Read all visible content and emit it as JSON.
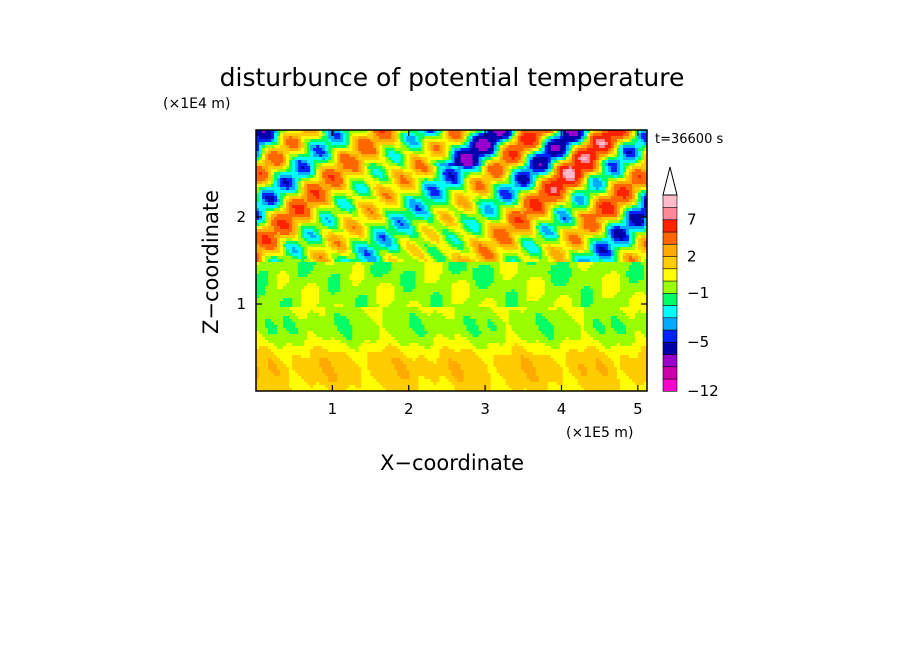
{
  "chart_data": {
    "type": "heatmap",
    "title": "disturbunce of potential temperature",
    "xlabel": "X−coordinate",
    "ylabel": "Z−coordinate",
    "x_unit": "(×1E5 m)",
    "y_unit": "(×1E4 m)",
    "time_label": "t=36600 s",
    "xlim": [
      0,
      5.12
    ],
    "ylim": [
      0,
      3.0
    ],
    "x_ticks": [
      1,
      2,
      3,
      4,
      5
    ],
    "x_tick_labels": [
      "1",
      "2",
      "3",
      "4",
      "5"
    ],
    "y_ticks": [
      1,
      2
    ],
    "y_tick_labels": [
      "1",
      "2"
    ],
    "grid": false,
    "colorbar": {
      "levels": [
        -12,
        -11,
        -9,
        -7,
        -5,
        -4,
        -3,
        -2,
        -1,
        0,
        1,
        2,
        3,
        5,
        7,
        8,
        9,
        10
      ],
      "colors": [
        "#ff00cc",
        "#cc00aa",
        "#9900cc",
        "#0000aa",
        "#0022ff",
        "#00aaff",
        "#00ffff",
        "#00ff66",
        "#99ff00",
        "#ffff00",
        "#ffcc00",
        "#ffaa00",
        "#ff6600",
        "#ff2200",
        "#ff8899",
        "#ffbbcc"
      ],
      "tick_values": [
        -12,
        -5,
        -1,
        2,
        7
      ],
      "tick_labels": [
        "−12",
        "−5",
        "−1",
        "2",
        "7"
      ],
      "extend": "max"
    },
    "field_description": "Contour-filled disturbance field: mostly yellow/orange near the surface (z<1), green band around z≈1.0–1.3, and wavy alternating orange/red and blue/purple anomalies in the upper layer (z≈1.5–3.0)."
  }
}
